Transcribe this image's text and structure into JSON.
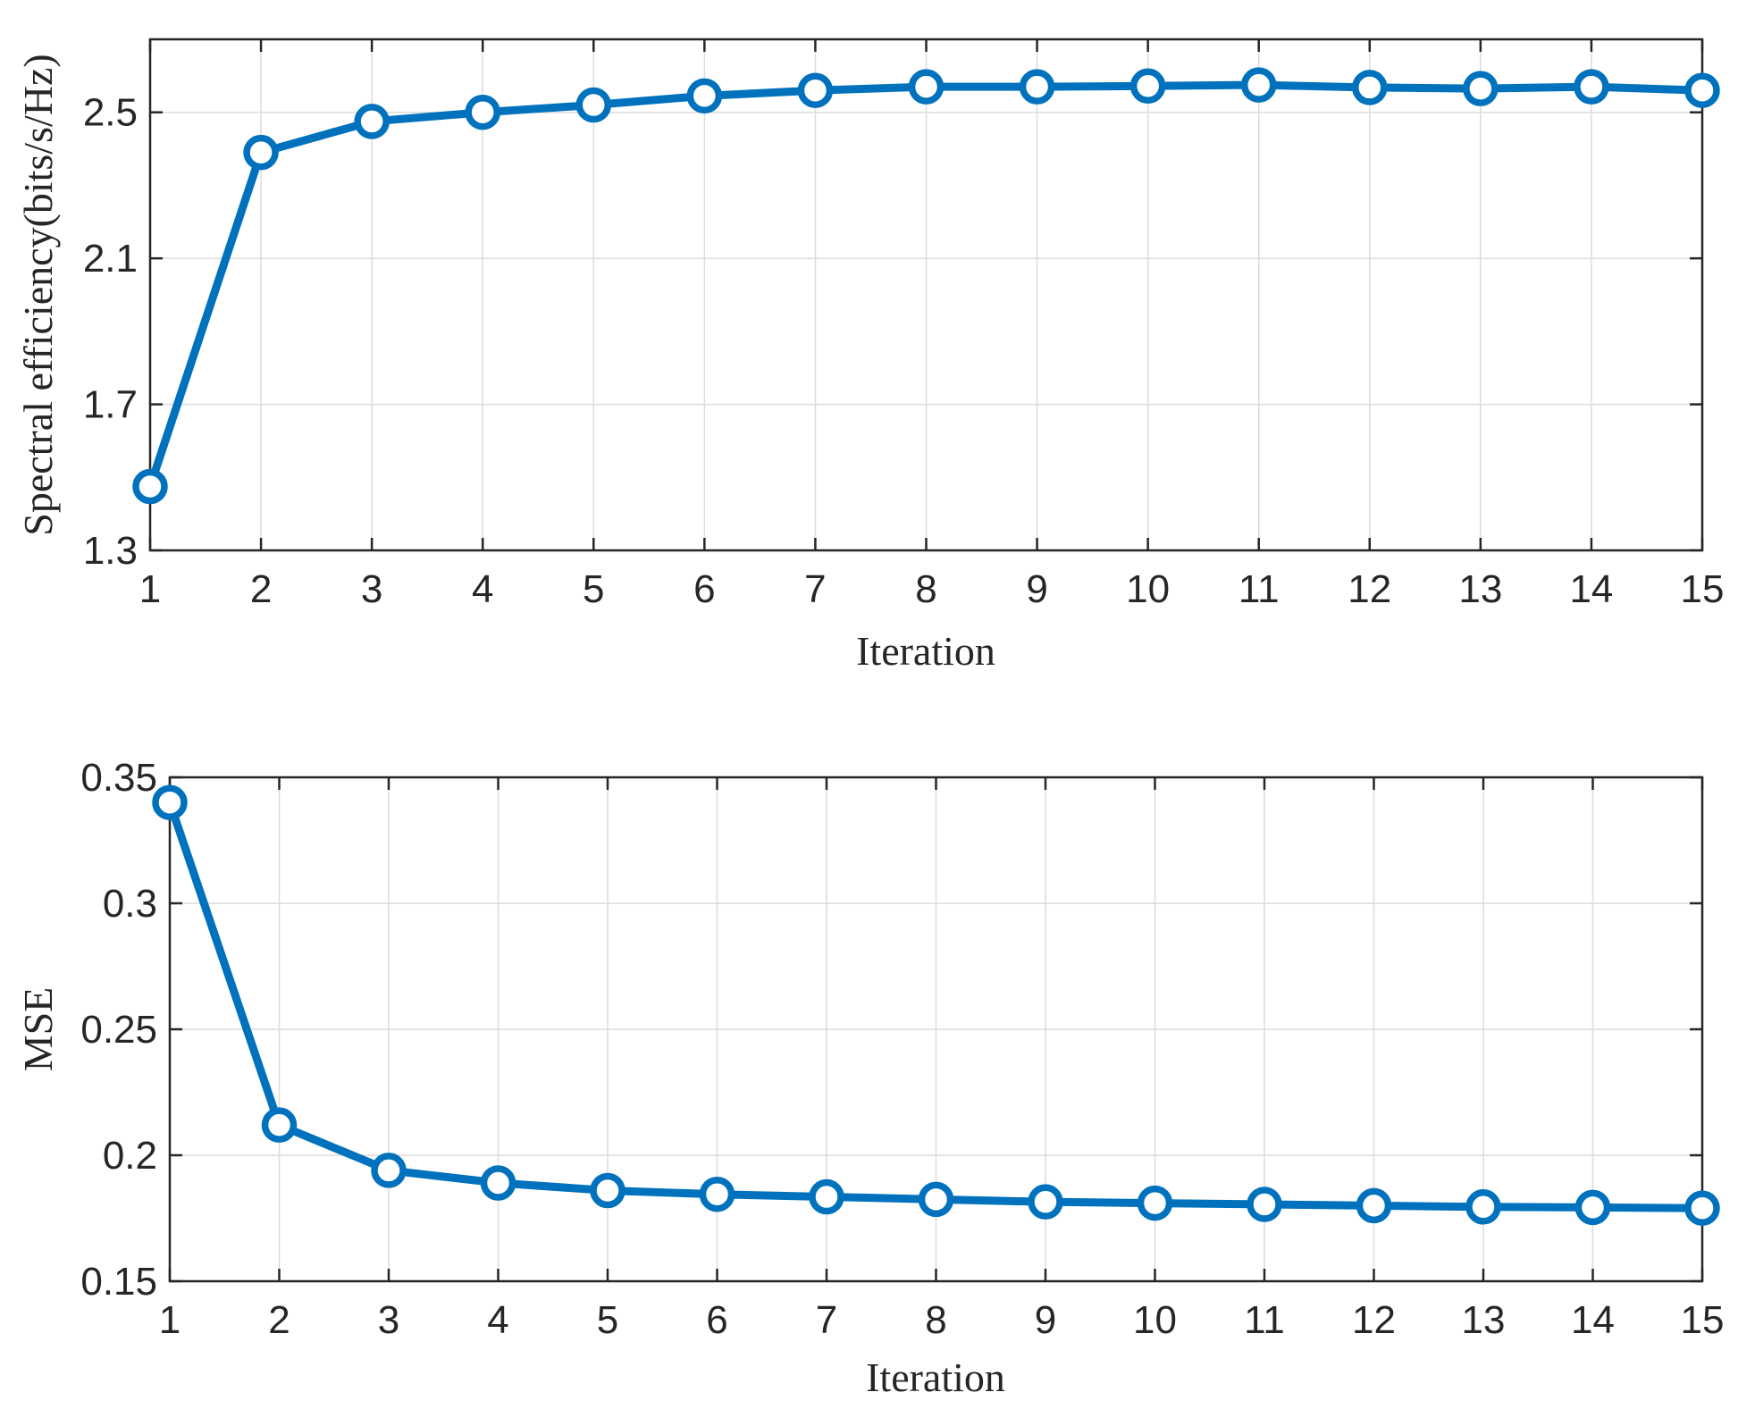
{
  "colors": {
    "series": "#0072BD",
    "axes": "#262626",
    "grid": "#dcdcdc"
  },
  "chart_data": [
    {
      "type": "line",
      "title": "",
      "xlabel": "Iteration",
      "ylabel": "Spectral efficiency(bits/s/Hz)",
      "xlim": [
        1,
        15
      ],
      "ylim": [
        1.3,
        2.7
      ],
      "grid": true,
      "marker": "circle",
      "x": [
        1,
        2,
        3,
        4,
        5,
        6,
        7,
        8,
        9,
        10,
        11,
        12,
        13,
        14,
        15
      ],
      "xticks": [
        "1",
        "2",
        "3",
        "4",
        "5",
        "6",
        "7",
        "8",
        "9",
        "10",
        "11",
        "12",
        "13",
        "14",
        "15"
      ],
      "yticks": [
        1.3,
        1.7,
        2.1,
        2.5
      ],
      "ytick_labels": [
        "1.3",
        "1.7",
        "2.1",
        "2.5"
      ],
      "series": [
        {
          "values": [
            1.475,
            2.39,
            2.475,
            2.5,
            2.52,
            2.545,
            2.56,
            2.57,
            2.57,
            2.572,
            2.575,
            2.568,
            2.565,
            2.57,
            2.56
          ]
        }
      ]
    },
    {
      "type": "line",
      "title": "",
      "xlabel": "Iteration",
      "ylabel": "MSE",
      "xlim": [
        1,
        15
      ],
      "ylim": [
        0.15,
        0.35
      ],
      "grid": true,
      "marker": "circle",
      "x": [
        1,
        2,
        3,
        4,
        5,
        6,
        7,
        8,
        9,
        10,
        11,
        12,
        13,
        14,
        15
      ],
      "xticks": [
        "1",
        "2",
        "3",
        "4",
        "5",
        "6",
        "7",
        "8",
        "9",
        "10",
        "11",
        "12",
        "13",
        "14",
        "15"
      ],
      "yticks": [
        0.15,
        0.2,
        0.25,
        0.3,
        0.35
      ],
      "ytick_labels": [
        "0.15",
        "0.2",
        "0.25",
        "0.3",
        "0.35"
      ],
      "series": [
        {
          "values": [
            0.34,
            0.212,
            0.194,
            0.189,
            0.186,
            0.1845,
            0.1835,
            0.1825,
            0.1815,
            0.181,
            0.1805,
            0.18,
            0.1795,
            0.1793,
            0.179
          ]
        }
      ]
    }
  ]
}
